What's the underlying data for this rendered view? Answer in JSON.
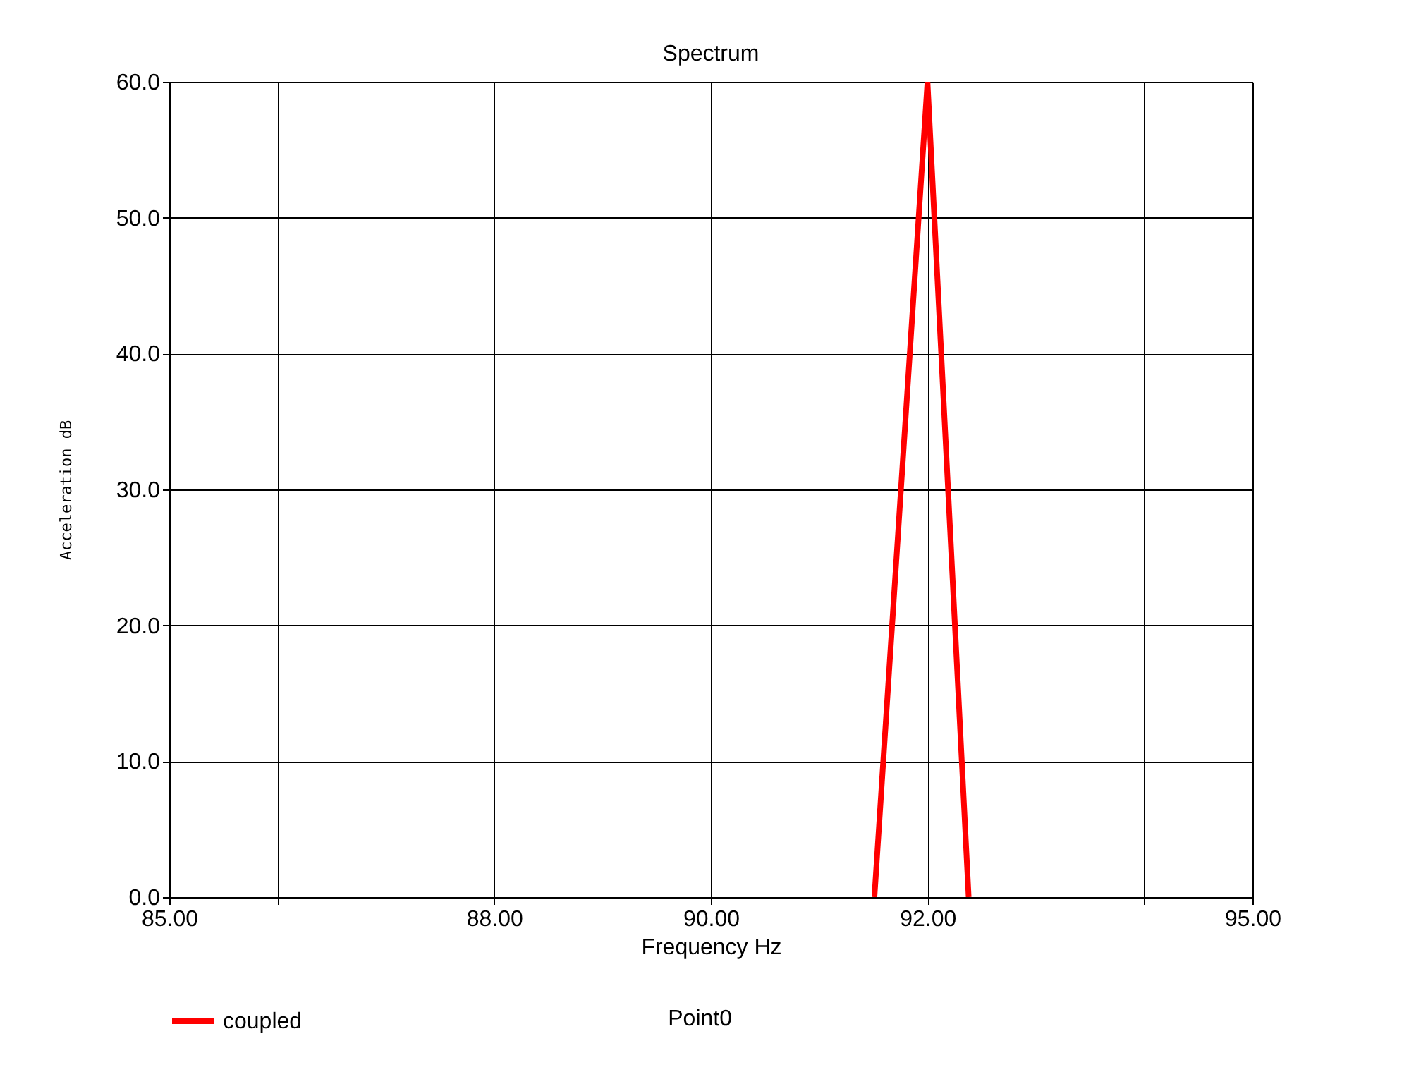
{
  "chart_data": {
    "type": "line",
    "title": "Spectrum",
    "xlabel": "Frequency Hz",
    "ylabel": "Acceleration dB",
    "series": [
      {
        "name": "coupled",
        "color": "#ff0000",
        "x": [
          91.51,
          92.0,
          92.38
        ],
        "values": [
          0,
          60,
          0
        ]
      }
    ],
    "xlim": [
      85,
      95
    ],
    "xticks": [
      {
        "value": 85,
        "label": "85.00"
      },
      {
        "value": 86,
        "label": null
      },
      {
        "value": 88,
        "label": "88.00"
      },
      {
        "value": 90,
        "label": "90.00"
      },
      {
        "value": 92,
        "label": "92.00"
      },
      {
        "value": 94,
        "label": null
      },
      {
        "value": 95,
        "label": "95.00"
      }
    ],
    "ylim": [
      0,
      60
    ],
    "yticks": [
      {
        "value": 0,
        "label": "0.0"
      },
      {
        "value": 10,
        "label": "10.0"
      },
      {
        "value": 20,
        "label": "20.0"
      },
      {
        "value": 30,
        "label": "30.0"
      },
      {
        "value": 40,
        "label": "40.0"
      },
      {
        "value": 50,
        "label": "50.0"
      },
      {
        "value": 60,
        "label": "60.0"
      }
    ],
    "grid": true,
    "legend": "bottom",
    "marker": "none",
    "line_style": "solid",
    "annotations": [
      "Point0"
    ]
  }
}
